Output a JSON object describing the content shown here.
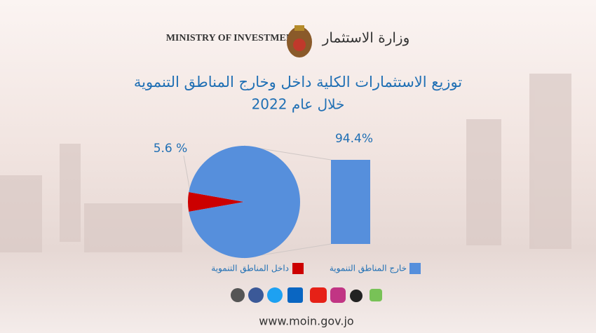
{
  "header": {
    "english_name": "MINISTRY OF INVESTMENT",
    "arabic_name": "وزارة الاستثمار"
  },
  "chart_data": {
    "type": "pie",
    "title": "توزيع الاستثمارات الكلية داخل وخارج المناطق التنموية",
    "subtitle": "خلال عام 2022",
    "categories": [
      "داخل المناطق التنموية",
      "خارج المناطق التنموية"
    ],
    "values": [
      5.6,
      94.4
    ],
    "value_labels": [
      "5.6 %",
      "94.4%"
    ],
    "colors": [
      "#cc0000",
      "#568fdc"
    ]
  },
  "footer": {
    "website": "www.moin.gov.jo"
  }
}
